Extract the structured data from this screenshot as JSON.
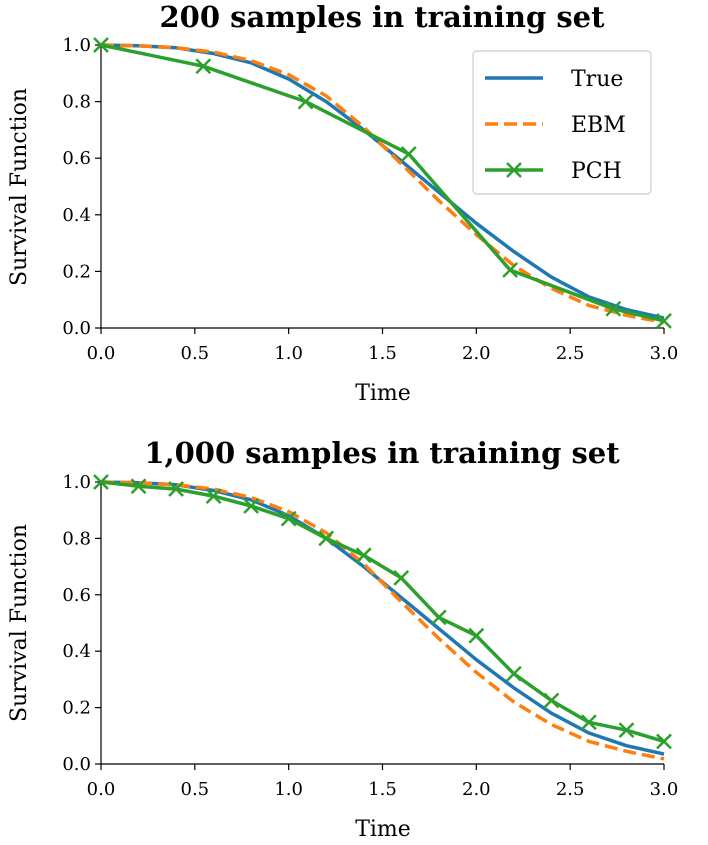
{
  "colors": {
    "true": "#1f77b4",
    "ebm": "#ff7f0e",
    "pch": "#2ca02c"
  },
  "chart_data": [
    {
      "type": "line",
      "title": "200 samples in training set",
      "xlabel": "Time",
      "ylabel": "Survival Function",
      "xlim": [
        0,
        3
      ],
      "ylim": [
        0,
        1
      ],
      "xticks": [
        "0.0",
        "0.5",
        "1.0",
        "1.5",
        "2.0",
        "2.5",
        "3.0"
      ],
      "yticks": [
        "0.0",
        "0.2",
        "0.4",
        "0.6",
        "0.8",
        "1.0"
      ],
      "grid": false,
      "legend": {
        "position": "top-right",
        "entries": [
          "True",
          "EBM",
          "PCH"
        ]
      },
      "series": [
        {
          "name": "True",
          "style": "solid",
          "markers": false,
          "x": [
            0,
            0.2,
            0.4,
            0.6,
            0.8,
            1.0,
            1.2,
            1.4,
            1.6,
            1.8,
            2.0,
            2.2,
            2.4,
            2.6,
            2.8,
            3.0
          ],
          "y": [
            1.0,
            0.997,
            0.99,
            0.97,
            0.937,
            0.88,
            0.8,
            0.7,
            0.59,
            0.48,
            0.37,
            0.27,
            0.18,
            0.11,
            0.065,
            0.035
          ]
        },
        {
          "name": "EBM",
          "style": "dashed",
          "markers": false,
          "x": [
            0,
            0.2,
            0.4,
            0.6,
            0.8,
            1.0,
            1.2,
            1.4,
            1.6,
            1.8,
            2.0,
            2.2,
            2.4,
            2.6,
            2.8,
            3.0
          ],
          "y": [
            1.0,
            0.997,
            0.99,
            0.975,
            0.945,
            0.895,
            0.82,
            0.71,
            0.58,
            0.45,
            0.33,
            0.22,
            0.14,
            0.08,
            0.045,
            0.02
          ]
        },
        {
          "name": "PCH",
          "style": "solid",
          "markers": true,
          "x": [
            0,
            0.545,
            1.09,
            1.64,
            2.18,
            2.73,
            3.0
          ],
          "y": [
            1.0,
            0.925,
            0.8,
            0.615,
            0.205,
            0.068,
            0.025
          ]
        }
      ]
    },
    {
      "type": "line",
      "title": "1,000 samples in training set",
      "xlabel": "Time",
      "ylabel": "Survival Function",
      "xlim": [
        0,
        3
      ],
      "ylim": [
        0,
        1
      ],
      "xticks": [
        "0.0",
        "0.5",
        "1.0",
        "1.5",
        "2.0",
        "2.5",
        "3.0"
      ],
      "yticks": [
        "0.0",
        "0.2",
        "0.4",
        "0.6",
        "0.8",
        "1.0"
      ],
      "grid": false,
      "legend": null,
      "series": [
        {
          "name": "True",
          "style": "solid",
          "markers": false,
          "x": [
            0,
            0.2,
            0.4,
            0.6,
            0.8,
            1.0,
            1.2,
            1.4,
            1.6,
            1.8,
            2.0,
            2.2,
            2.4,
            2.6,
            2.8,
            3.0
          ],
          "y": [
            1.0,
            0.997,
            0.99,
            0.97,
            0.937,
            0.88,
            0.8,
            0.7,
            0.59,
            0.48,
            0.37,
            0.27,
            0.18,
            0.11,
            0.065,
            0.035
          ]
        },
        {
          "name": "EBM",
          "style": "dashed",
          "markers": false,
          "x": [
            0,
            0.2,
            0.4,
            0.6,
            0.8,
            1.0,
            1.2,
            1.4,
            1.6,
            1.8,
            2.0,
            2.2,
            2.4,
            2.6,
            2.8,
            3.0
          ],
          "y": [
            1.0,
            0.997,
            0.99,
            0.975,
            0.945,
            0.895,
            0.82,
            0.71,
            0.575,
            0.445,
            0.325,
            0.22,
            0.14,
            0.08,
            0.045,
            0.018
          ]
        },
        {
          "name": "PCH",
          "style": "solid",
          "markers": true,
          "x": [
            0,
            0.2,
            0.4,
            0.6,
            0.8,
            1.0,
            1.2,
            1.4,
            1.6,
            1.8,
            2.0,
            2.2,
            2.4,
            2.6,
            2.8,
            3.0
          ],
          "y": [
            1.0,
            0.985,
            0.975,
            0.95,
            0.915,
            0.87,
            0.8,
            0.74,
            0.66,
            0.52,
            0.455,
            0.32,
            0.225,
            0.148,
            0.12,
            0.08
          ]
        }
      ]
    }
  ]
}
